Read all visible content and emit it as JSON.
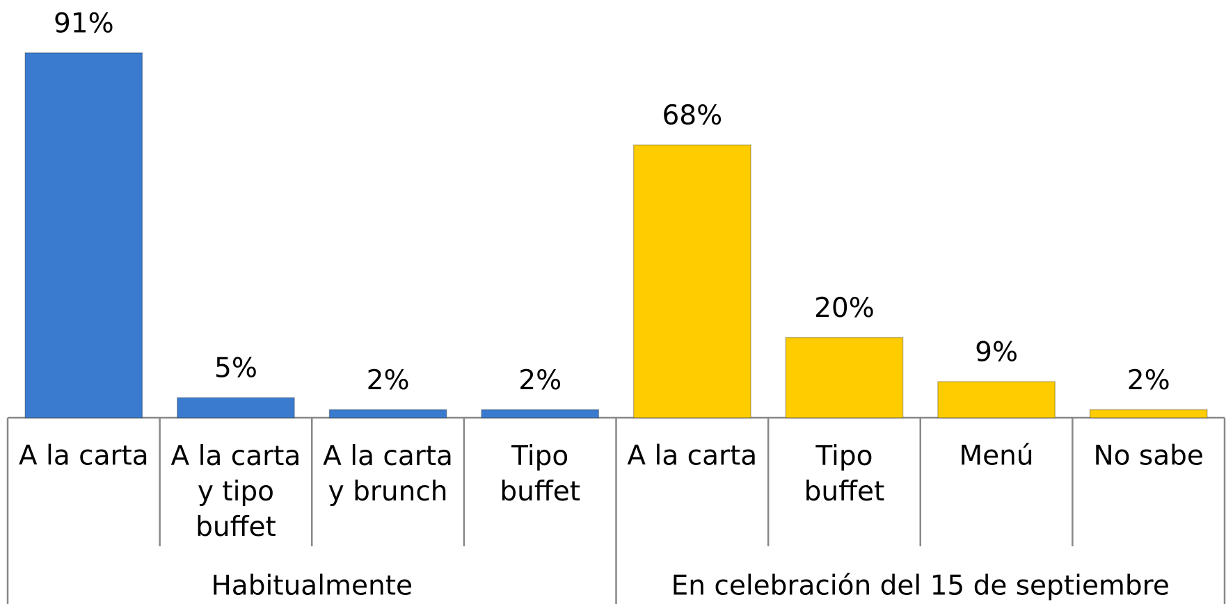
{
  "chart_data": {
    "type": "bar",
    "categories": [
      "A la carta",
      "A la carta\ny tipo\nbuffet",
      "A la carta\ny brunch",
      "Tipo\nbuffet",
      "A la carta",
      "Tipo\nbuffet",
      "Menú",
      "No sabe"
    ],
    "values": [
      91,
      5,
      2,
      2,
      68,
      20,
      9,
      2
    ],
    "value_labels": [
      "91%",
      "5%",
      "2%",
      "2%",
      "68%",
      "20%",
      "9%",
      "2%"
    ],
    "colors": [
      "#3a7bd0",
      "#3a7bd0",
      "#3a7bd0",
      "#3a7bd0",
      "#ffcc00",
      "#ffcc00",
      "#ffcc00",
      "#ffcc00"
    ],
    "groups": [
      {
        "label": "Habitualmente",
        "size": 4
      },
      {
        "label": "En celebración del 15 de septiembre",
        "size": 4
      }
    ]
  }
}
